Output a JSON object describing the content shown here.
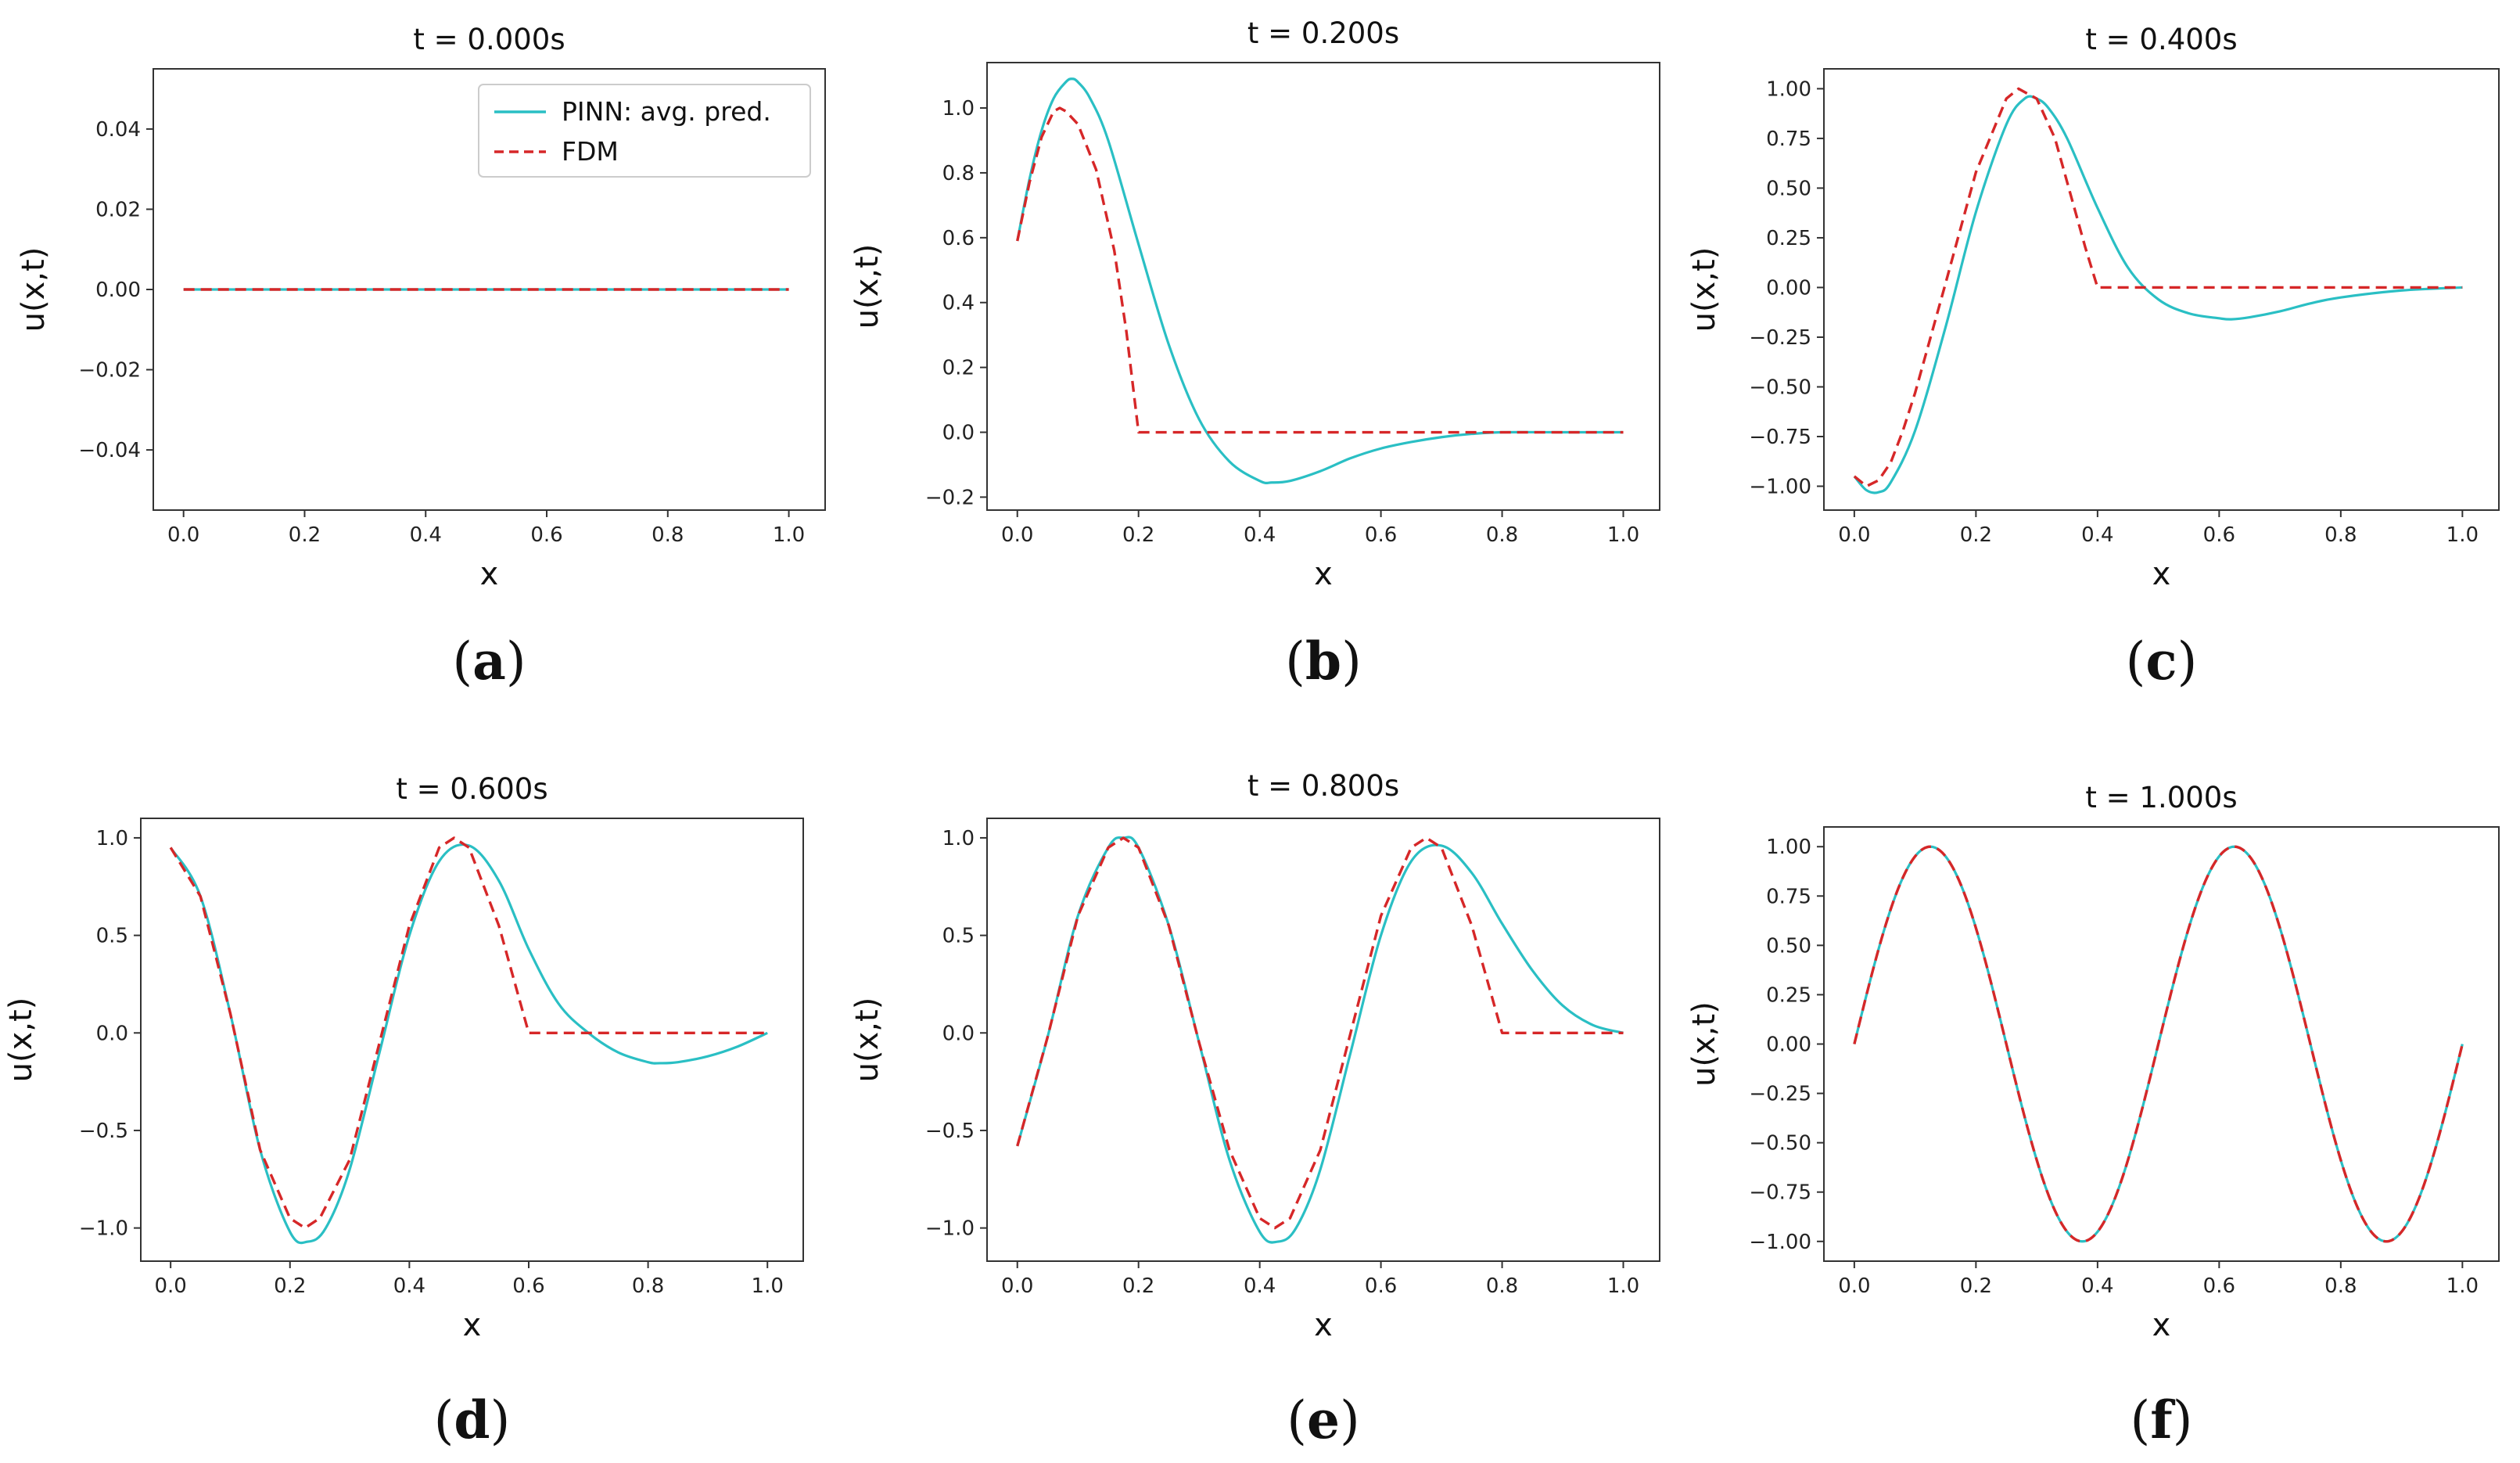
{
  "figure": {
    "legend": {
      "pinn_label": "PINN: avg. pred.",
      "fdm_label": "FDM",
      "placement": "upper right of panel (a)"
    },
    "colors": {
      "pinn": "#2ABFC4",
      "fdm": "#D62728",
      "axes": "#333333"
    }
  },
  "chart_data": [
    {
      "type": "line",
      "title": "t = 0.000s",
      "caption": "a",
      "xlabel": "x",
      "ylabel": "u(x,t)",
      "xlim": [
        -0.05,
        1.06
      ],
      "ylim": [
        -0.055,
        0.055
      ],
      "xticks": [
        0.0,
        0.2,
        0.4,
        0.6,
        0.8,
        1.0
      ],
      "xtick_labels": [
        "0.0",
        "0.2",
        "0.4",
        "0.6",
        "0.8",
        "1.0"
      ],
      "yticks": [
        0.04,
        0.02,
        0.0,
        -0.02,
        -0.04
      ],
      "ytick_labels": [
        "0.04",
        "0.02",
        "0.00",
        "−0.02",
        "−0.04"
      ],
      "series": [
        {
          "name": "PINN: avg. pred.",
          "x": [
            0,
            1.0
          ],
          "y": [
            0,
            0
          ]
        },
        {
          "name": "FDM",
          "x": [
            0,
            1.0
          ],
          "y": [
            0,
            0
          ]
        }
      ]
    },
    {
      "type": "line",
      "title": "t = 0.200s",
      "caption": "b",
      "xlabel": "x",
      "ylabel": "u(x,t)",
      "xlim": [
        -0.05,
        1.06
      ],
      "ylim": [
        -0.24,
        1.14
      ],
      "xticks": [
        0.0,
        0.2,
        0.4,
        0.6,
        0.8,
        1.0
      ],
      "xtick_labels": [
        "0.0",
        "0.2",
        "0.4",
        "0.6",
        "0.8",
        "1.0"
      ],
      "yticks": [
        1.0,
        0.8,
        0.6,
        0.4,
        0.2,
        0.0,
        -0.2
      ],
      "ytick_labels": [
        "1.0",
        "0.8",
        "0.6",
        "0.4",
        "0.2",
        "0.0",
        "−0.2"
      ],
      "series": [
        {
          "name": "PINN: avg. pred.",
          "x": [
            0,
            0.02,
            0.04,
            0.06,
            0.08,
            0.09,
            0.1,
            0.12,
            0.15,
            0.2,
            0.25,
            0.3,
            0.35,
            0.4,
            0.42,
            0.45,
            0.5,
            0.55,
            0.6,
            0.65,
            0.7,
            0.75,
            0.8,
            0.9,
            1.0
          ],
          "y": [
            0.59,
            0.78,
            0.93,
            1.03,
            1.08,
            1.09,
            1.08,
            1.03,
            0.9,
            0.58,
            0.27,
            0.04,
            -0.09,
            -0.15,
            -0.155,
            -0.15,
            -0.12,
            -0.08,
            -0.05,
            -0.03,
            -0.015,
            -0.005,
            0.0,
            0.0,
            0.0
          ]
        },
        {
          "name": "FDM",
          "x": [
            0,
            0.02,
            0.04,
            0.06,
            0.07,
            0.08,
            0.1,
            0.13,
            0.16,
            0.18,
            0.2,
            0.4,
            0.6,
            0.8,
            1.0
          ],
          "y": [
            0.59,
            0.77,
            0.91,
            0.99,
            1.0,
            0.99,
            0.95,
            0.81,
            0.56,
            0.31,
            0.0,
            0.0,
            0.0,
            0.0,
            0.0
          ]
        }
      ]
    },
    {
      "type": "line",
      "title": "t = 0.400s",
      "caption": "c",
      "xlabel": "x",
      "ylabel": "u(x,t)",
      "xlim": [
        -0.05,
        1.06
      ],
      "ylim": [
        -1.12,
        1.1
      ],
      "xticks": [
        0.0,
        0.2,
        0.4,
        0.6,
        0.8,
        1.0
      ],
      "xtick_labels": [
        "0.0",
        "0.2",
        "0.4",
        "0.6",
        "0.8",
        "1.0"
      ],
      "yticks": [
        1.0,
        0.75,
        0.5,
        0.25,
        0.0,
        -0.25,
        -0.5,
        -0.75,
        -1.0
      ],
      "ytick_labels": [
        "1.00",
        "0.75",
        "0.50",
        "0.25",
        "0.00",
        "−0.25",
        "−0.50",
        "−0.75",
        "−1.00"
      ],
      "series": [
        {
          "name": "PINN: avg. pred.",
          "x": [
            0,
            0.02,
            0.04,
            0.06,
            0.1,
            0.15,
            0.2,
            0.25,
            0.28,
            0.3,
            0.32,
            0.35,
            0.4,
            0.45,
            0.5,
            0.55,
            0.6,
            0.62,
            0.65,
            0.7,
            0.75,
            0.8,
            0.9,
            1.0
          ],
          "y": [
            -0.95,
            -1.02,
            -1.03,
            -0.98,
            -0.72,
            -0.2,
            0.38,
            0.82,
            0.95,
            0.95,
            0.9,
            0.75,
            0.4,
            0.1,
            -0.06,
            -0.13,
            -0.155,
            -0.16,
            -0.15,
            -0.12,
            -0.08,
            -0.05,
            -0.015,
            0.0
          ]
        },
        {
          "name": "FDM",
          "x": [
            0,
            0.02,
            0.04,
            0.06,
            0.08,
            0.1,
            0.15,
            0.2,
            0.25,
            0.27,
            0.3,
            0.33,
            0.36,
            0.38,
            0.4,
            0.6,
            0.8,
            1.0
          ],
          "y": [
            -0.95,
            -1.0,
            -0.97,
            -0.88,
            -0.72,
            -0.53,
            0.02,
            0.58,
            0.95,
            1.0,
            0.95,
            0.75,
            0.42,
            0.2,
            0.0,
            0.0,
            0.0,
            0.0
          ]
        }
      ]
    },
    {
      "type": "line",
      "title": "t = 0.600s",
      "caption": "d",
      "xlabel": "x",
      "ylabel": "u(x,t)",
      "xlim": [
        -0.05,
        1.06
      ],
      "ylim": [
        -1.17,
        1.1
      ],
      "xticks": [
        0.0,
        0.2,
        0.4,
        0.6,
        0.8,
        1.0
      ],
      "xtick_labels": [
        "0.0",
        "0.2",
        "0.4",
        "0.6",
        "0.8",
        "1.0"
      ],
      "yticks": [
        1.0,
        0.5,
        0.0,
        -0.5,
        -1.0
      ],
      "ytick_labels": [
        "1.0",
        "0.5",
        "0.0",
        "−0.5",
        "−1.0"
      ],
      "series": [
        {
          "name": "PINN: avg. pred.",
          "x": [
            0,
            0.05,
            0.1,
            0.15,
            0.2,
            0.23,
            0.26,
            0.3,
            0.35,
            0.4,
            0.45,
            0.5,
            0.55,
            0.6,
            0.65,
            0.7,
            0.75,
            0.8,
            0.82,
            0.85,
            0.9,
            0.95,
            1.0
          ],
          "y": [
            0.95,
            0.7,
            0.1,
            -0.6,
            -1.02,
            -1.07,
            -1.0,
            -0.7,
            -0.1,
            0.5,
            0.88,
            0.96,
            0.78,
            0.43,
            0.15,
            0.0,
            -0.1,
            -0.15,
            -0.155,
            -0.15,
            -0.12,
            -0.07,
            0.0
          ]
        },
        {
          "name": "FDM",
          "x": [
            0,
            0.05,
            0.1,
            0.15,
            0.2,
            0.225,
            0.25,
            0.3,
            0.35,
            0.4,
            0.45,
            0.475,
            0.5,
            0.55,
            0.6,
            0.8,
            1.0
          ],
          "y": [
            0.95,
            0.7,
            0.1,
            -0.6,
            -0.95,
            -1.0,
            -0.95,
            -0.65,
            -0.05,
            0.55,
            0.95,
            1.0,
            0.95,
            0.55,
            0.0,
            0.0,
            0.0
          ]
        }
      ]
    },
    {
      "type": "line",
      "title": "t = 0.800s",
      "caption": "e",
      "xlabel": "x",
      "ylabel": "u(x,t)",
      "xlim": [
        -0.05,
        1.06
      ],
      "ylim": [
        -1.17,
        1.1
      ],
      "xticks": [
        0.0,
        0.2,
        0.4,
        0.6,
        0.8,
        1.0
      ],
      "xtick_labels": [
        "0.0",
        "0.2",
        "0.4",
        "0.6",
        "0.8",
        "1.0"
      ],
      "yticks": [
        1.0,
        0.5,
        0.0,
        -0.5,
        -1.0
      ],
      "ytick_labels": [
        "1.0",
        "0.5",
        "0.0",
        "−0.5",
        "−1.0"
      ],
      "series": [
        {
          "name": "PINN: avg. pred.",
          "x": [
            0,
            0.05,
            0.1,
            0.15,
            0.175,
            0.2,
            0.25,
            0.3,
            0.35,
            0.4,
            0.43,
            0.46,
            0.5,
            0.55,
            0.6,
            0.65,
            0.7,
            0.75,
            0.8,
            0.85,
            0.9,
            0.95,
            1.0
          ],
          "y": [
            -0.58,
            -0.02,
            0.6,
            0.95,
            1.0,
            0.95,
            0.55,
            -0.05,
            -0.65,
            -1.02,
            -1.07,
            -1.0,
            -0.7,
            -0.1,
            0.5,
            0.88,
            0.96,
            0.82,
            0.56,
            0.32,
            0.14,
            0.04,
            0.0
          ]
        },
        {
          "name": "FDM",
          "x": [
            0,
            0.05,
            0.1,
            0.15,
            0.175,
            0.2,
            0.25,
            0.3,
            0.35,
            0.4,
            0.425,
            0.45,
            0.5,
            0.55,
            0.6,
            0.65,
            0.675,
            0.7,
            0.75,
            0.8,
            1.0
          ],
          "y": [
            -0.58,
            -0.02,
            0.6,
            0.95,
            1.0,
            0.95,
            0.55,
            -0.05,
            -0.6,
            -0.95,
            -1.0,
            -0.95,
            -0.6,
            0.0,
            0.6,
            0.95,
            1.0,
            0.95,
            0.55,
            0.0,
            0.0
          ]
        }
      ]
    },
    {
      "type": "line",
      "title": "t = 1.000s",
      "caption": "f",
      "xlabel": "x",
      "ylabel": "u(x,t)",
      "xlim": [
        -0.05,
        1.06
      ],
      "ylim": [
        -1.1,
        1.1
      ],
      "xticks": [
        0.0,
        0.2,
        0.4,
        0.6,
        0.8,
        1.0
      ],
      "xtick_labels": [
        "0.0",
        "0.2",
        "0.4",
        "0.6",
        "0.8",
        "1.0"
      ],
      "yticks": [
        1.0,
        0.75,
        0.5,
        0.25,
        0.0,
        -0.25,
        -0.5,
        -0.75,
        -1.0
      ],
      "ytick_labels": [
        "1.00",
        "0.75",
        "0.50",
        "0.25",
        "0.00",
        "−0.25",
        "−0.50",
        "−0.75",
        "−1.00"
      ],
      "series": [
        {
          "name": "PINN: avg. pred.",
          "function": "sin(4*pi*x)",
          "x_range": [
            0,
            1.0
          ]
        },
        {
          "name": "FDM",
          "function": "sin(4*pi*x)",
          "x_range": [
            0,
            1.0
          ]
        }
      ]
    }
  ]
}
